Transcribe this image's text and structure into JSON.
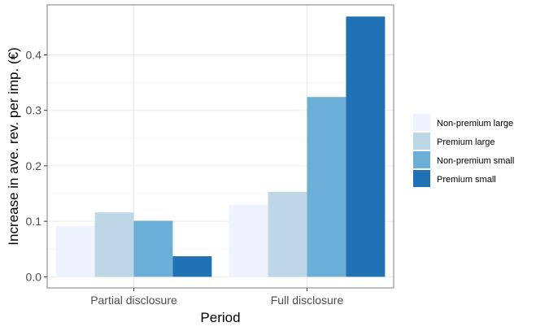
{
  "chart_data": {
    "type": "bar",
    "title": "",
    "xlabel": "Period",
    "ylabel": "Increase in ave. rev. per imp. (€)",
    "categories": [
      "Partial disclosure",
      "Full disclosure"
    ],
    "series": [
      {
        "name": "Non-premium large",
        "color": "#eff3ff",
        "values": [
          0.092,
          0.13
        ]
      },
      {
        "name": "Premium large",
        "color": "#bdd7e7",
        "values": [
          0.116,
          0.153
        ]
      },
      {
        "name": "Non-premium small",
        "color": "#6baed6",
        "values": [
          0.101,
          0.324
        ]
      },
      {
        "name": "Premium small",
        "color": "#2171b5",
        "values": [
          0.037,
          0.469
        ]
      }
    ],
    "ylim": [
      -0.02,
      0.49
    ],
    "yticks": [
      0.0,
      0.1,
      0.2,
      0.3,
      0.4
    ],
    "ytick_labels": [
      "0.0",
      "0.1",
      "0.2",
      "0.3",
      "0.4"
    ],
    "grid": true,
    "legend_position": "right"
  }
}
